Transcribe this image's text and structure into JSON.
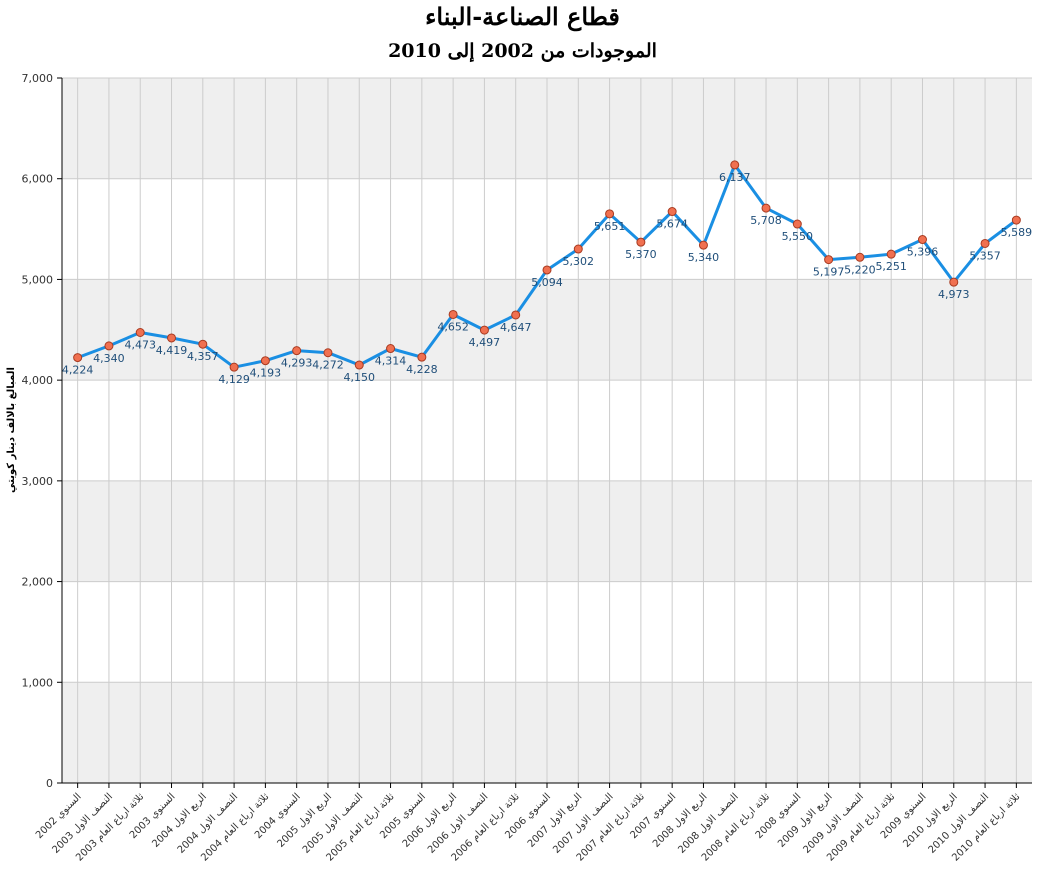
{
  "chart_data": {
    "type": "line",
    "title": "قطاع الصناعة-البناء",
    "subtitle": "الموجودات من 2002 إلى 2010",
    "ylabel": "المبالغ بالالف دينار كويتي",
    "ylim": [
      0,
      7000
    ],
    "yticks": [
      "0",
      "1,000",
      "2,000",
      "3,000",
      "4,000",
      "5,000",
      "6,000",
      "7,000"
    ],
    "grid": true,
    "legend": "none",
    "categories": [
      "السنوي 2002",
      "النصف الاول 2003",
      "ثلاثة ارباع العام 2003",
      "السنوي 2003",
      "الربع الاول 2004",
      "النصف الاول 2004",
      "ثلاثة ارباع العام 2004",
      "السنوي 2004",
      "الربع الاول 2005",
      "النصف الاول 2005",
      "ثلاثة ارباع العام 2005",
      "السنوي 2005",
      "الربع الاول 2006",
      "النصف الاول 2006",
      "ثلاثة ارباع العام 2006",
      "السنوي 2006",
      "الربع الاول 2007",
      "النصف الاول 2007",
      "ثلاثة ارباع العام 2007",
      "السنوي 2007",
      "الربع الاول 2008",
      "النصف الاول 2008",
      "ثلاثة ارباع العام 2008",
      "السنوي 2008",
      "الربع الاول 2009",
      "النصف الاول 2009",
      "ثلاثة ارباع العام 2009",
      "السنوي 2009",
      "الربع الاول 2010",
      "النصف الاول 2010",
      "ثلاثة ارباع العام 2010"
    ],
    "values": [
      4224,
      4340,
      4473,
      4419,
      4357,
      4129,
      4193,
      4293,
      4272,
      4150,
      4314,
      4228,
      4652,
      4497,
      4647,
      5094,
      5302,
      5651,
      5370,
      5674,
      5340,
      6137,
      5708,
      5550,
      5197,
      5220,
      5251,
      5396,
      4973,
      5357,
      5589
    ],
    "labels": [
      "4,224",
      "4,340",
      "4,473",
      "4,419",
      "4,357",
      "4,129",
      "4,193",
      "4,293",
      "4,272",
      "4,150",
      "4,314",
      "4,228",
      "4,652",
      "4,497",
      "4,647",
      "5,094",
      "5,302",
      "5,651",
      "5,370",
      "5,674",
      "5,340",
      "6,137",
      "5,708",
      "5,550",
      "5,197",
      "5,220",
      "5,251",
      "5,396",
      "4,973",
      "5,357",
      "5,589"
    ],
    "colors": {
      "line": "#1a8fe3",
      "marker_fill": "#f07050",
      "marker_stroke": "#a83a20",
      "band": "#efefef",
      "grid": "#cccccc",
      "label": "#1f4e79"
    }
  }
}
